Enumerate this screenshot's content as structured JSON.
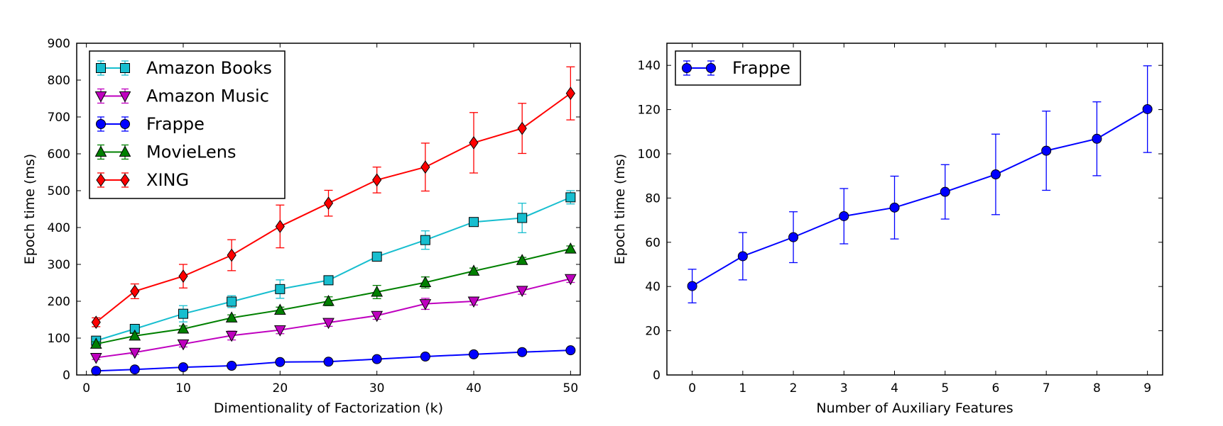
{
  "chart_data": [
    {
      "type": "line",
      "title": "",
      "xlabel": "Dimentionality of Factorization (k)",
      "ylabel": "Epoch time (ms)",
      "xlim": [
        -1,
        51
      ],
      "ylim": [
        0,
        900
      ],
      "xticks": [
        0,
        10,
        20,
        30,
        40,
        50
      ],
      "yticks": [
        0,
        100,
        200,
        300,
        400,
        500,
        600,
        700,
        800,
        900
      ],
      "grid": false,
      "legend_position": "top-left",
      "x": [
        1,
        5,
        10,
        15,
        20,
        25,
        30,
        35,
        40,
        45,
        50
      ],
      "series": [
        {
          "name": "Amazon Books",
          "color": "#17becf",
          "marker": "square",
          "values": [
            93,
            125,
            166,
            199,
            233,
            257,
            321,
            366,
            415,
            426,
            482
          ],
          "errors": [
            8,
            10,
            22,
            16,
            25,
            12,
            12,
            25,
            10,
            40,
            18
          ]
        },
        {
          "name": "Amazon Music",
          "color": "#bf00bf",
          "marker": "triangle-down",
          "values": [
            47,
            61,
            84,
            107,
            122,
            142,
            161,
            193,
            200,
            229,
            261
          ],
          "errors": [
            5,
            5,
            8,
            12,
            10,
            10,
            10,
            15,
            10,
            10,
            10
          ]
        },
        {
          "name": "Frappe",
          "color": "#0000ff",
          "marker": "circle",
          "values": [
            11,
            15,
            21,
            25,
            35,
            36,
            43,
            50,
            56,
            62,
            67
          ],
          "errors": [
            2,
            2,
            3,
            3,
            3,
            3,
            3,
            3,
            3,
            3,
            3
          ]
        },
        {
          "name": "MovieLens",
          "color": "#008000",
          "marker": "triangle-up",
          "values": [
            84,
            106,
            125,
            155,
            176,
            200,
            225,
            251,
            282,
            311,
            342
          ],
          "errors": [
            6,
            8,
            8,
            8,
            8,
            12,
            18,
            15,
            8,
            8,
            8
          ]
        },
        {
          "name": "XING",
          "color": "#ff0000",
          "marker": "diamond",
          "values": [
            143,
            227,
            268,
            325,
            403,
            466,
            529,
            564,
            630,
            669,
            764
          ],
          "errors": [
            12,
            20,
            32,
            42,
            58,
            35,
            35,
            65,
            82,
            68,
            72
          ]
        }
      ]
    },
    {
      "type": "line",
      "title": "",
      "xlabel": "Number of Auxiliary Features",
      "ylabel": "Epoch time (ms)",
      "xlim": [
        -0.5,
        9.3
      ],
      "ylim": [
        0,
        150
      ],
      "xticks": [
        0,
        1,
        2,
        3,
        4,
        5,
        6,
        7,
        8,
        9
      ],
      "yticks": [
        0,
        20,
        40,
        60,
        80,
        100,
        120,
        140
      ],
      "grid": false,
      "legend_position": "top-left",
      "x": [
        0,
        1,
        2,
        3,
        4,
        5,
        6,
        7,
        8,
        9
      ],
      "series": [
        {
          "name": "Frappe",
          "color": "#0000ff",
          "marker": "circle",
          "values": [
            40.2,
            53.7,
            62.3,
            71.8,
            75.7,
            82.8,
            90.7,
            101.4,
            106.8,
            120.2
          ],
          "errors": [
            7.6,
            10.7,
            11.5,
            12.5,
            14.2,
            12.3,
            18.2,
            17.9,
            16.7,
            19.6
          ]
        }
      ]
    }
  ]
}
